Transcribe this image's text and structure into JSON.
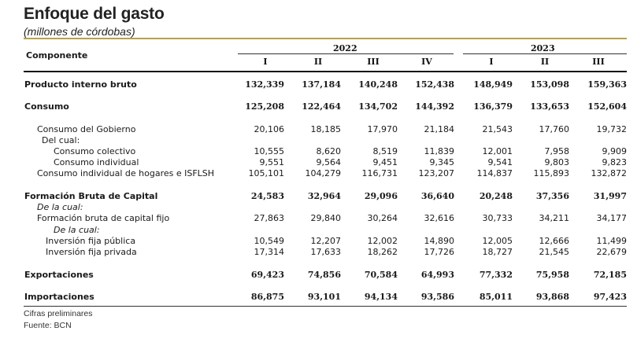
{
  "title": "Enfoque del gasto",
  "subtitle": "(millones de córdobas)",
  "header": {
    "component_label": "Componente",
    "year_2022": "2022",
    "year_2023": "2023",
    "quarters": [
      "I",
      "II",
      "III",
      "IV",
      "I",
      "II",
      "III"
    ]
  },
  "rows": [
    {
      "label": "Producto interno bruto",
      "values": [
        "132,339",
        "137,184",
        "140,248",
        "152,438",
        "148,949",
        "153,098",
        "159,363"
      ]
    },
    {
      "label": "Consumo",
      "values": [
        "125,208",
        "122,464",
        "134,702",
        "144,392",
        "136,379",
        "133,653",
        "152,604"
      ]
    },
    {
      "label": "Consumo del Gobierno",
      "values": [
        "20,106",
        "18,185",
        "17,970",
        "21,184",
        "21,543",
        "17,760",
        "19,732"
      ]
    },
    {
      "label": "Del cual:",
      "values": []
    },
    {
      "label": "Consumo colectivo",
      "values": [
        "10,555",
        "8,620",
        "8,519",
        "11,839",
        "12,001",
        "7,958",
        "9,909"
      ]
    },
    {
      "label": "Consumo individual",
      "values": [
        "9,551",
        "9,564",
        "9,451",
        "9,345",
        "9,541",
        "9,803",
        "9,823"
      ]
    },
    {
      "label": "Consumo individual de hogares e ISFLSH",
      "values": [
        "105,101",
        "104,279",
        "116,731",
        "123,207",
        "114,837",
        "115,893",
        "132,872"
      ]
    },
    {
      "label": "Formación Bruta de Capital",
      "values": [
        "24,583",
        "32,964",
        "29,096",
        "36,640",
        "20,248",
        "37,356",
        "31,997"
      ]
    },
    {
      "label": "De la cual:",
      "values": []
    },
    {
      "label": "Formación bruta de capital fijo",
      "values": [
        "27,863",
        "29,840",
        "30,264",
        "32,616",
        "30,733",
        "34,211",
        "34,177"
      ]
    },
    {
      "label": "De la cual:",
      "values": []
    },
    {
      "label": "Inversión fija pública",
      "values": [
        "10,549",
        "12,207",
        "12,002",
        "14,890",
        "12,005",
        "12,666",
        "11,499"
      ]
    },
    {
      "label": "Inversión fija privada",
      "values": [
        "17,314",
        "17,633",
        "18,262",
        "17,726",
        "18,727",
        "21,545",
        "22,679"
      ]
    },
    {
      "label": "Exportaciones",
      "values": [
        "69,423",
        "74,856",
        "70,584",
        "64,993",
        "77,332",
        "75,958",
        "72,185"
      ]
    },
    {
      "label": "Importaciones",
      "values": [
        "86,875",
        "93,101",
        "94,134",
        "93,586",
        "85,011",
        "93,868",
        "97,423"
      ]
    }
  ],
  "notes": [
    "Cifras preliminares",
    "Fuente: BCN"
  ]
}
